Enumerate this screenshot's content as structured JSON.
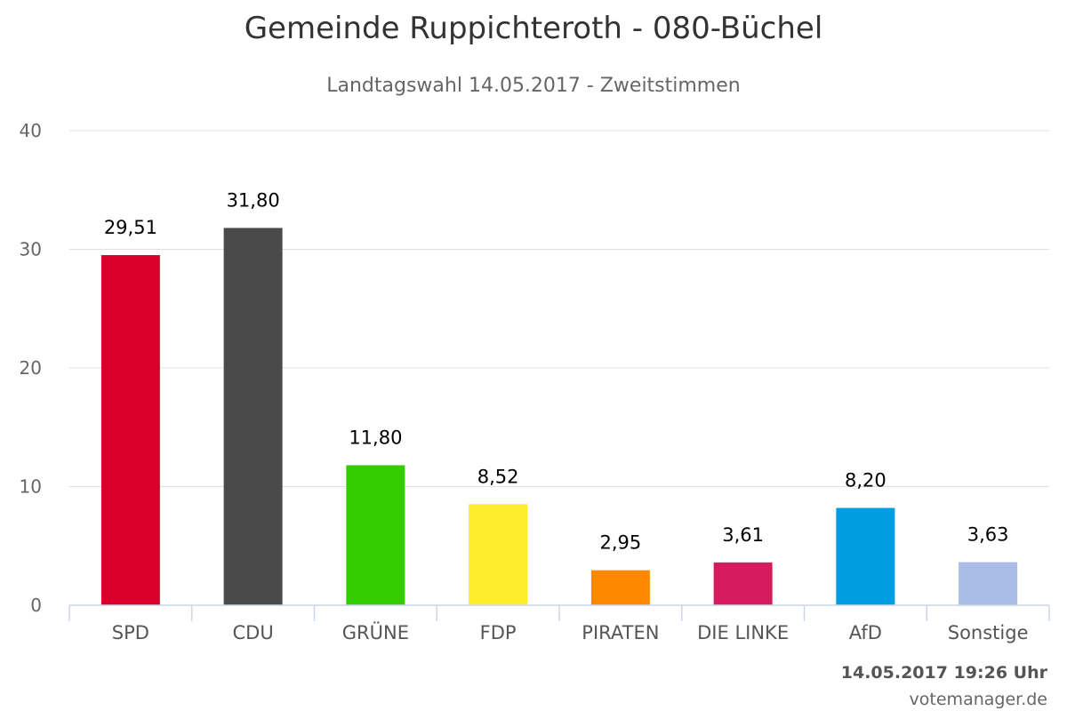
{
  "chart_data": {
    "type": "bar",
    "title": "Gemeinde Ruppichteroth - 080-Büchel",
    "subtitle": "Landtagswahl 14.05.2017 - Zweitstimmen",
    "xlabel": "",
    "ylabel": "",
    "categories": [
      "SPD",
      "CDU",
      "GRÜNE",
      "FDP",
      "PIRATEN",
      "DIE LINKE",
      "AfD",
      "Sonstige"
    ],
    "values": [
      29.51,
      31.8,
      11.8,
      8.52,
      2.95,
      3.61,
      8.2,
      3.63
    ],
    "value_labels": [
      "29,51",
      "31,80",
      "11,80",
      "8,52",
      "2,95",
      "3,61",
      "8,20",
      "3,63"
    ],
    "colors": [
      "#d8002a",
      "#4a4a4a",
      "#33cc00",
      "#fcec2c",
      "#ff8800",
      "#d41c5c",
      "#009ee0",
      "#aabde6"
    ],
    "ylim": [
      0,
      40
    ],
    "yticks": [
      0,
      10,
      20,
      30,
      40
    ],
    "grid": true,
    "legend": "none"
  },
  "footer": {
    "date": "14.05.2017 19:26 Uhr",
    "source": "votemanager.de"
  }
}
